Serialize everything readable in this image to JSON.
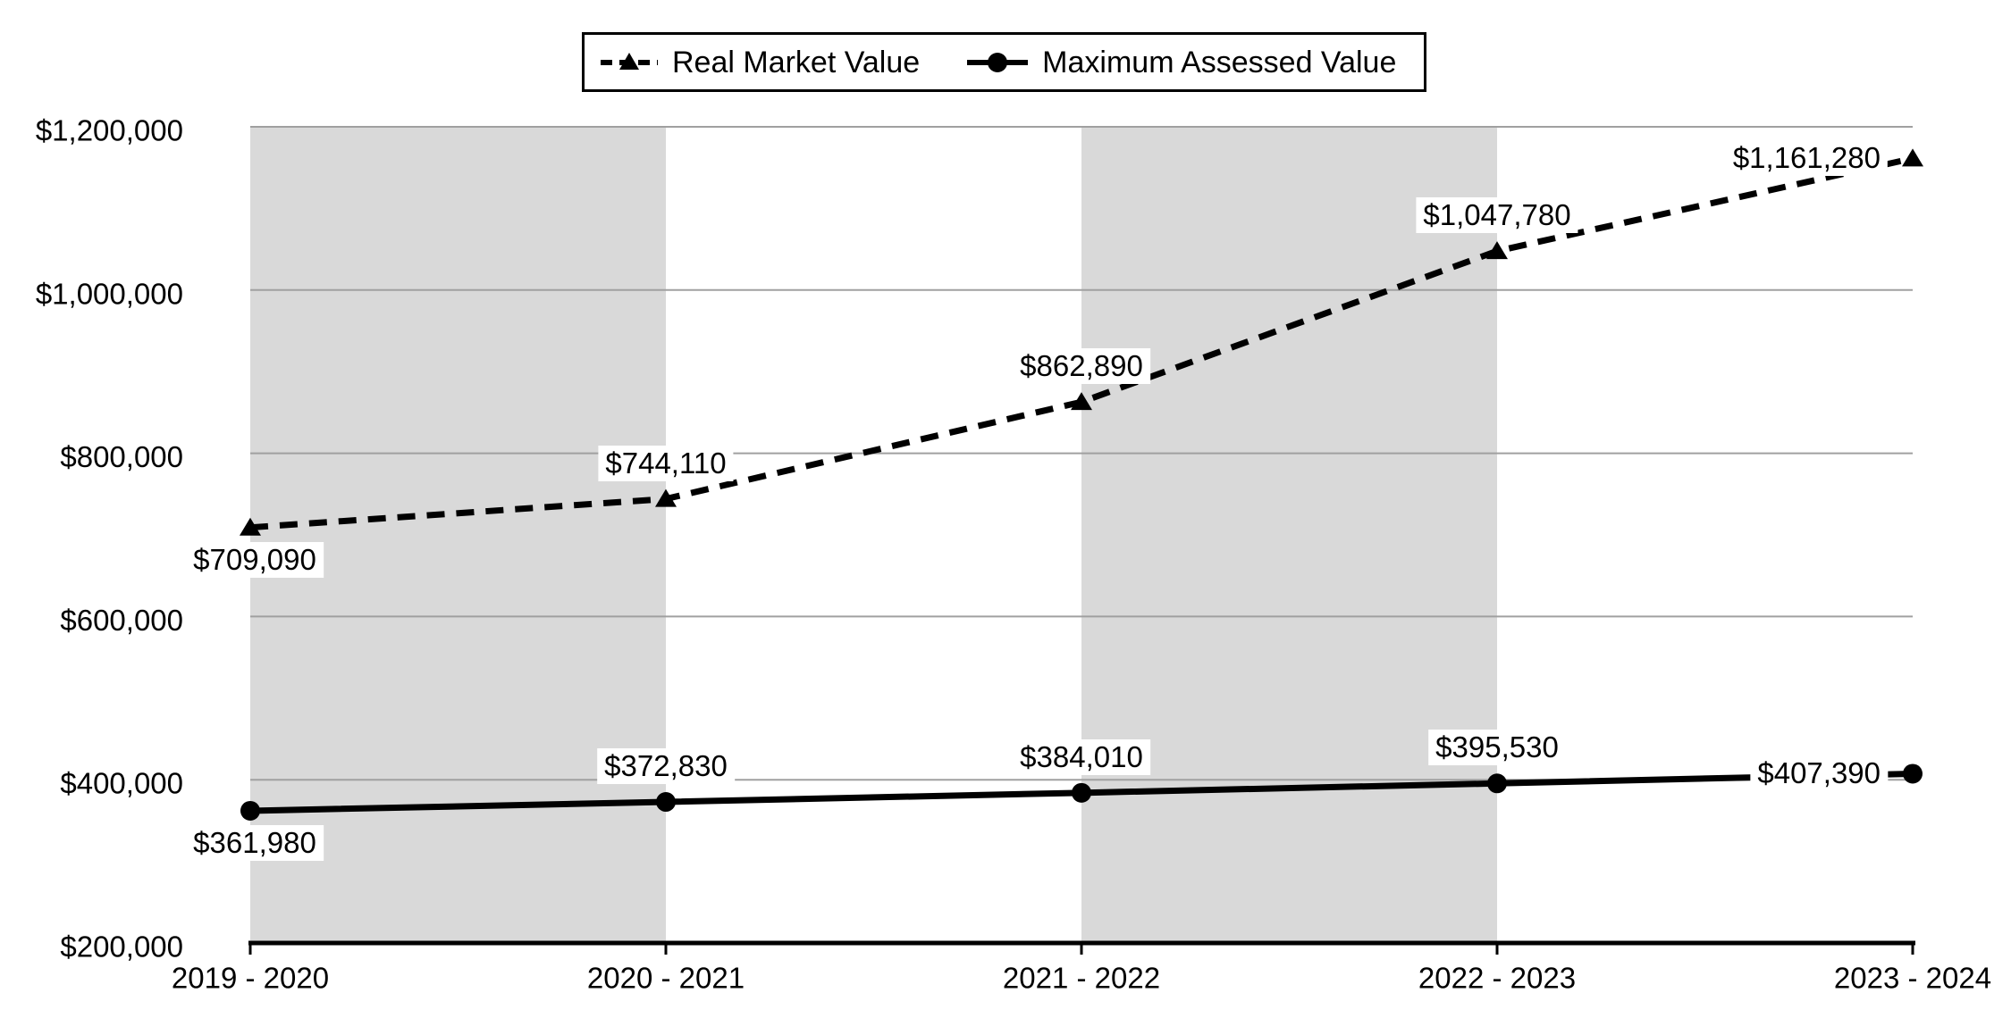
{
  "chart_data": {
    "type": "line",
    "title": "",
    "categories": [
      "2019 - 2020",
      "2020 - 2021",
      "2021 - 2022",
      "2022 - 2023",
      "2023 - 2024"
    ],
    "series": [
      {
        "name": "Real Market Value",
        "line_style": "dashed",
        "marker": "triangle",
        "color": "#000000",
        "values": [
          709090,
          744110,
          862890,
          1047780,
          1161280
        ],
        "labels": [
          "$709,090",
          "$744,110",
          "$862,890",
          "$1,047,780",
          "$1,161,280"
        ],
        "label_positions": [
          "below",
          "above",
          "above",
          "above",
          "left"
        ]
      },
      {
        "name": "Maximum Assessed Value",
        "line_style": "solid",
        "marker": "circle",
        "color": "#000000",
        "values": [
          361980,
          372830,
          384010,
          395530,
          407390
        ],
        "labels": [
          "$361,980",
          "$372,830",
          "$384,010",
          "$395,530",
          "$407,390"
        ],
        "label_positions": [
          "below",
          "above",
          "above",
          "above",
          "left"
        ]
      }
    ],
    "y_axis": {
      "min": 200000,
      "max": 1200000,
      "step": 200000,
      "tick_labels": [
        "$200,000",
        "$400,000",
        "$600,000",
        "$800,000",
        "$1,000,000",
        "$1,200,000"
      ]
    },
    "x_axis": {
      "tick_labels": [
        "2019 - 2020",
        "2020 - 2021",
        "2021 - 2022",
        "2022 - 2023",
        "2023 - 2024"
      ]
    },
    "legend_position": "top",
    "grid": true,
    "band_intervals": [
      0,
      2
    ],
    "colors": {
      "series": "#000000",
      "gridline": "#a0a0a0",
      "band": "#d9d9d9",
      "axis": "#000000",
      "background": "#ffffff",
      "label_background": "#ffffff"
    }
  }
}
